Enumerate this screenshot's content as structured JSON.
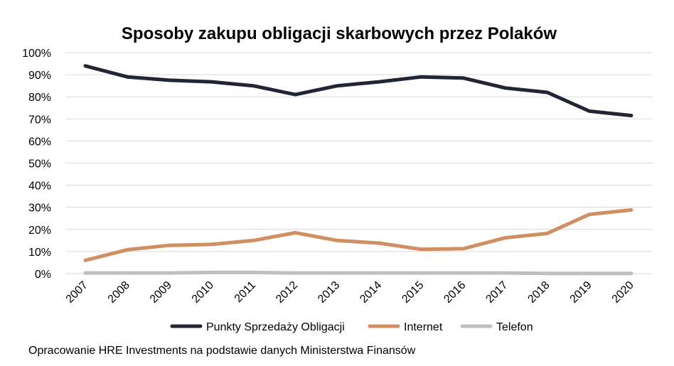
{
  "chart_data": {
    "type": "line",
    "title": "Sposoby zakupu obligacji skarbowych przez Polaków",
    "xlabel": "",
    "ylabel": "",
    "categories": [
      "2007",
      "2008",
      "2009",
      "2010",
      "2011",
      "2012",
      "2013",
      "2014",
      "2015",
      "2016",
      "2017",
      "2018",
      "2019",
      "2020"
    ],
    "ylim": [
      0,
      100
    ],
    "yticks": [
      "0%",
      "10%",
      "20%",
      "30%",
      "40%",
      "50%",
      "60%",
      "70%",
      "80%",
      "90%",
      "100%"
    ],
    "grid": true,
    "legend_position": "bottom",
    "series": [
      {
        "name": "Punkty Sprzedaży Obligacji",
        "color": "#222533",
        "values": [
          94,
          89,
          87.5,
          86.8,
          85,
          81,
          85,
          86.8,
          89,
          88.5,
          84,
          82,
          73.5,
          71.5
        ]
      },
      {
        "name": "Internet",
        "color": "#d08f63",
        "values": [
          6,
          10.8,
          12.8,
          13.2,
          15,
          18.5,
          15,
          13.8,
          11,
          11.3,
          16.2,
          18.2,
          26.8,
          28.8
        ]
      },
      {
        "name": "Telefon",
        "color": "#bfbfbf",
        "values": [
          0.3,
          0.3,
          0.3,
          0.5,
          0.5,
          0.3,
          0.3,
          0.3,
          0.3,
          0.3,
          0.3,
          0.1,
          0.1,
          0.1
        ]
      }
    ]
  },
  "source": "Opracowanie HRE Investments na podstawie danych Ministerstwa Finansów"
}
